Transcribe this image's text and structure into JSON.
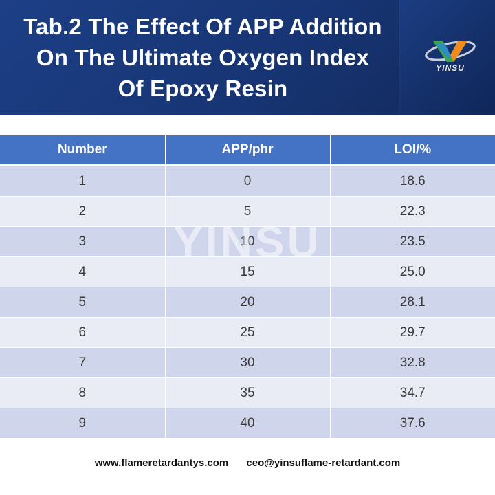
{
  "header": {
    "title_lines": [
      "Tab.2 The Effect Of APP Addition",
      "On The Ultimate Oxygen Index",
      "Of Epoxy Resin"
    ],
    "logo_text": "YINSU",
    "background": "#1d3f86"
  },
  "table": {
    "headers": [
      "Number",
      "APP/phr",
      "LOI/%"
    ],
    "rows": [
      [
        "1",
        "0",
        "18.6"
      ],
      [
        "2",
        "5",
        "22.3"
      ],
      [
        "3",
        "10",
        "23.5"
      ],
      [
        "4",
        "15",
        "25.0"
      ],
      [
        "5",
        "20",
        "28.1"
      ],
      [
        "6",
        "25",
        "29.7"
      ],
      [
        "7",
        "30",
        "32.8"
      ],
      [
        "8",
        "35",
        "34.7"
      ],
      [
        "9",
        "40",
        "37.6"
      ]
    ],
    "header_color": "#4472c4",
    "row_colors": [
      "#cfd5ea",
      "#e9ebf5"
    ]
  },
  "watermark": "YINSU",
  "footer": {
    "website": "www.flameretardantys.com",
    "email": "ceo@yinsuflame-retardant.com"
  }
}
